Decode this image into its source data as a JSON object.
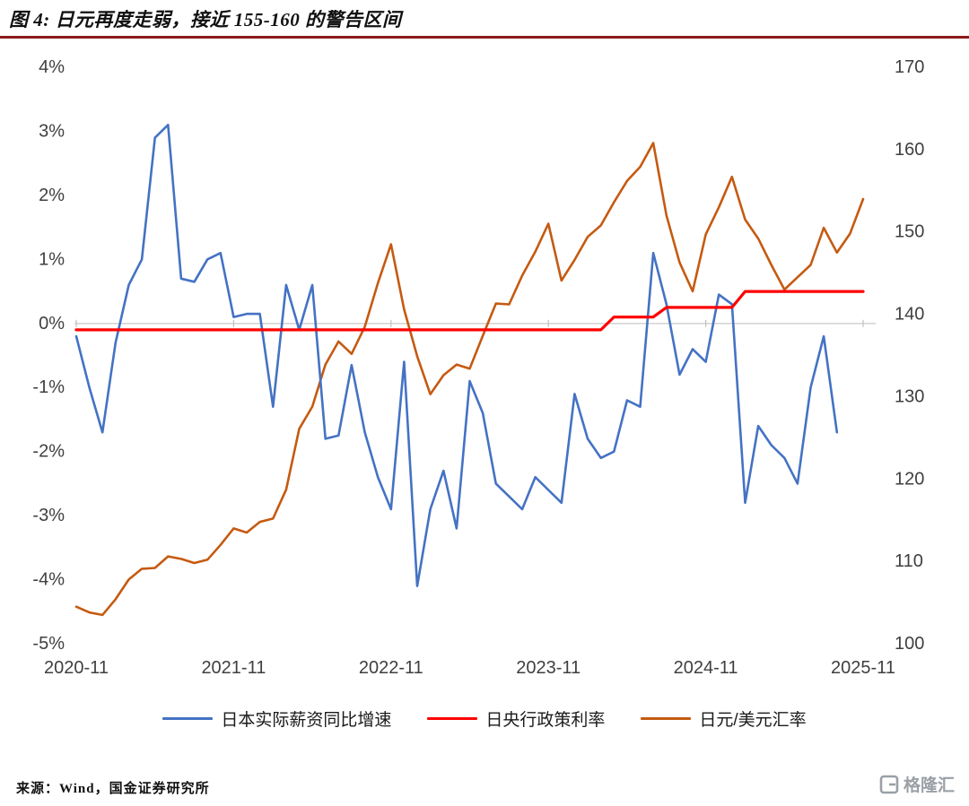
{
  "title": "图 4: 日元再度走弱，接近 155-160 的警告区间",
  "source": "来源：Wind，国金证券研究所",
  "watermark": {
    "text": "格隆汇"
  },
  "colors": {
    "wage_line": "#4472C4",
    "policy_line": "#FF0000",
    "fx_line": "#C55A11",
    "title_rule": "#8B1A1A",
    "zero_line": "#D6D6D6",
    "tick_mark": "#BFBFBF",
    "axis_text": "#3f3f3f"
  },
  "chart_data": {
    "type": "line",
    "title": "日元再度走弱，接近 155-160 的警告区间",
    "x_start_month": "2020-11",
    "x_frequency": "monthly",
    "month_count": 61,
    "x_tick_labels": [
      "2020-11",
      "2021-11",
      "2022-11",
      "2023-11",
      "2024-11",
      "2025-11"
    ],
    "x_tick_month_index": [
      0,
      12,
      24,
      36,
      48,
      60
    ],
    "left_axis": {
      "unit": "%",
      "min": -5,
      "max": 4,
      "tick_values": [
        4,
        3,
        2,
        1,
        0,
        -1,
        -2,
        -3,
        -4,
        -5
      ],
      "tick_labels": [
        "4%",
        "3%",
        "2%",
        "1%",
        "0%",
        "-1%",
        "-2%",
        "-3%",
        "-4%",
        "-5%"
      ]
    },
    "right_axis": {
      "min": 100,
      "max": 170,
      "tick_values": [
        170,
        160,
        150,
        140,
        130,
        120,
        110,
        100
      ],
      "tick_labels": [
        "170",
        "160",
        "150",
        "140",
        "130",
        "120",
        "110",
        "100"
      ]
    },
    "grid": "zero-line-only",
    "legend_position": "bottom",
    "series": [
      {
        "name": "日本实际薪资同比增速",
        "axis": "left",
        "color": "#4472C4",
        "values": [
          -0.2,
          -1.0,
          -1.7,
          -0.3,
          0.6,
          1.0,
          2.9,
          3.1,
          0.7,
          0.65,
          1.0,
          1.1,
          0.1,
          0.15,
          0.15,
          -1.3,
          0.6,
          -0.1,
          0.6,
          -1.8,
          -1.75,
          -0.65,
          -1.7,
          -2.4,
          -2.9,
          -0.6,
          -4.1,
          -2.9,
          -2.3,
          -3.2,
          -0.9,
          -1.4,
          -2.5,
          -2.7,
          -2.9,
          -2.4,
          -2.6,
          -2.8,
          -1.1,
          -1.8,
          -2.1,
          -2.0,
          -1.2,
          -1.3,
          1.1,
          0.3,
          -0.8,
          -0.4,
          -0.6,
          0.45,
          0.3,
          -2.8,
          -1.6,
          -1.9,
          -2.1,
          -2.5,
          -1.0,
          -0.2,
          -1.7
        ]
      },
      {
        "name": "日央行政策利率",
        "axis": "left",
        "color": "#FF0000",
        "values": [
          -0.1,
          -0.1,
          -0.1,
          -0.1,
          -0.1,
          -0.1,
          -0.1,
          -0.1,
          -0.1,
          -0.1,
          -0.1,
          -0.1,
          -0.1,
          -0.1,
          -0.1,
          -0.1,
          -0.1,
          -0.1,
          -0.1,
          -0.1,
          -0.1,
          -0.1,
          -0.1,
          -0.1,
          -0.1,
          -0.1,
          -0.1,
          -0.1,
          -0.1,
          -0.1,
          -0.1,
          -0.1,
          -0.1,
          -0.1,
          -0.1,
          -0.1,
          -0.1,
          -0.1,
          -0.1,
          -0.1,
          -0.1,
          0.1,
          0.1,
          0.1,
          0.1,
          0.25,
          0.25,
          0.25,
          0.25,
          0.25,
          0.25,
          0.5,
          0.5,
          0.5,
          0.5,
          0.5,
          0.5,
          0.5,
          0.5,
          0.5,
          0.5
        ]
      },
      {
        "name": "日元/美元汇率",
        "axis": "right",
        "color": "#C55A11",
        "values": [
          104.5,
          103.8,
          103.5,
          105.4,
          107.8,
          109.1,
          109.2,
          110.6,
          110.3,
          109.8,
          110.2,
          112.0,
          114.0,
          113.5,
          114.8,
          115.2,
          118.7,
          126.1,
          128.8,
          133.9,
          136.7,
          135.2,
          138.5,
          143.8,
          148.5,
          140.6,
          134.9,
          130.3,
          132.6,
          133.9,
          133.4,
          137.4,
          141.3,
          141.2,
          144.7,
          147.6,
          151.0,
          144.1,
          146.6,
          149.4,
          150.8,
          153.6,
          156.2,
          157.9,
          160.8,
          152.0,
          146.3,
          142.8,
          149.7,
          153.0,
          156.7,
          151.5,
          149.2,
          146.0,
          143.0,
          144.5,
          146.0,
          150.5,
          147.5,
          149.8,
          154.0
        ]
      }
    ]
  }
}
